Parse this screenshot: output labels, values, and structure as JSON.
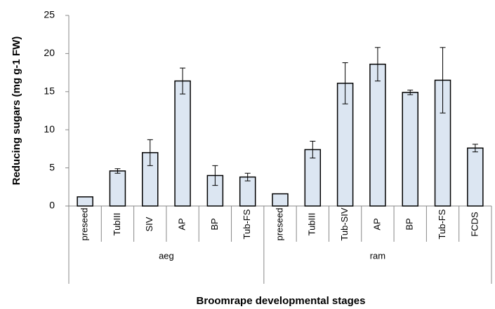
{
  "chart_data": {
    "type": "bar",
    "ylabel": "Reducing sugars (mg g-1 FW)",
    "xlabel": "Broomrape developmental stages",
    "ylim": [
      0,
      25
    ],
    "yticks": [
      0,
      5,
      10,
      15,
      20,
      25
    ],
    "color": "#dce6f2",
    "groups": [
      {
        "name": "aeg",
        "categories": [
          "preseed",
          "TubIII",
          "SIV",
          "AP",
          "BP",
          "Tub-FS"
        ],
        "values": [
          1.2,
          4.6,
          7.0,
          16.4,
          4.0,
          3.8
        ],
        "errors": [
          0,
          0.3,
          1.7,
          1.7,
          1.3,
          0.5
        ]
      },
      {
        "name": "ram",
        "categories": [
          "preseed",
          "TubIII",
          "Tub-SIV",
          "AP",
          "BP",
          "Tub-FS",
          "FCDS"
        ],
        "values": [
          1.6,
          7.4,
          16.1,
          18.6,
          14.9,
          16.5,
          7.6
        ],
        "errors": [
          0,
          1.1,
          2.7,
          2.2,
          0.3,
          4.3,
          0.5
        ]
      }
    ]
  }
}
